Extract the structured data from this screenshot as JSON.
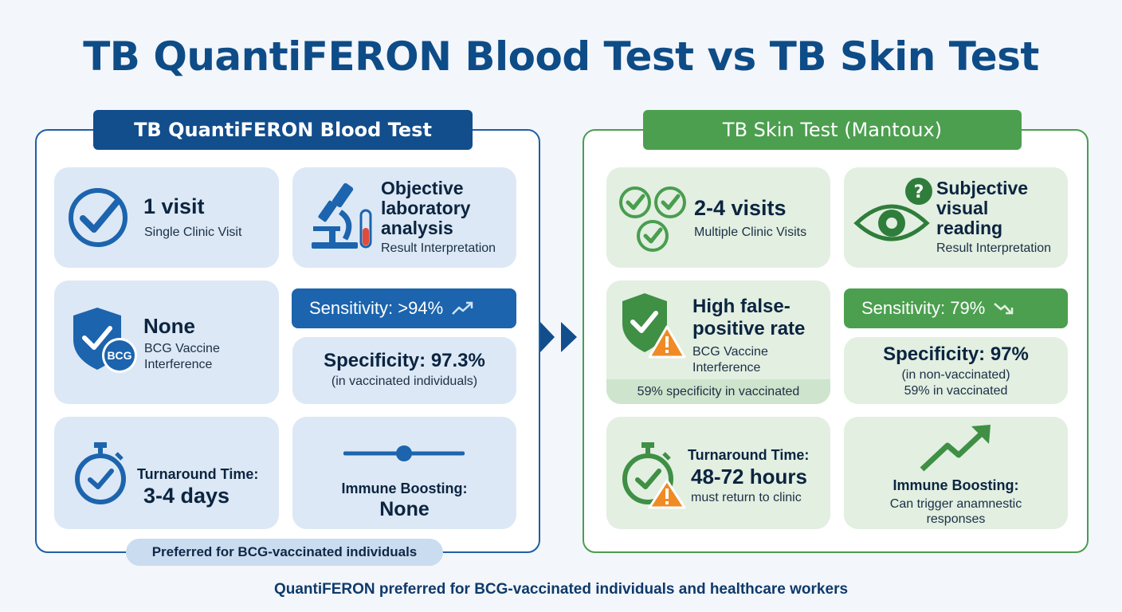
{
  "title": "TB QuantiFERON Blood Test vs TB Skin Test",
  "colors": {
    "blue": "#1d5fa5",
    "green": "#4a9d4f",
    "warning": "#f08a24"
  },
  "left": {
    "header": "TB QuantiFERON Blood Test",
    "visits": {
      "main": "1 visit",
      "sub": "Single Clinic Visit",
      "icon": "check-circle-icon"
    },
    "analysis": {
      "line1": "Objective",
      "line2": "laboratory",
      "line3": "analysis",
      "sub": "Result Interpretation",
      "icon": "microscope-icon"
    },
    "bcg": {
      "main": "None",
      "sub1": "BCG Vaccine",
      "sub2": "Interference",
      "badge": "BCG",
      "icon": "shield-check-icon"
    },
    "sensitivity": "Sensitivity: >94%",
    "specificity": {
      "main": "Specificity: 97.3%",
      "sub": "(in vaccinated individuals)"
    },
    "turnaround": {
      "label": "Turnaround Time:",
      "value": "3-4 days",
      "icon": "stopwatch-icon"
    },
    "boosting": {
      "label": "Immune Boosting:",
      "value": "None",
      "icon": "flat-line-icon"
    },
    "preferred": "Preferred for BCG-vaccinated individuals"
  },
  "right": {
    "header": "TB Skin Test (Mantoux)",
    "visits": {
      "main": "2-4 visits",
      "sub": "Multiple Clinic Visits",
      "icon": "multi-check-icon"
    },
    "reading": {
      "line1": "Subjective",
      "line2": "visual",
      "line3": "reading",
      "sub": "Result Interpretation",
      "icon": "eye-question-icon"
    },
    "bcg": {
      "line1": "High false-",
      "line2": "positive rate",
      "sub1": "BCG Vaccine",
      "sub2": "Interference",
      "note": "59% specificity in vaccinated",
      "icon": "shield-warning-icon"
    },
    "sensitivity": "Sensitivity: 79%",
    "specificity": {
      "main": "Specificity: 97%",
      "sub1": "(in non-vaccinated)",
      "sub2": "59% in vaccinated"
    },
    "turnaround": {
      "label": "Turnaround Time:",
      "value": "48-72 hours",
      "sub": "must return to clinic",
      "icon": "stopwatch-warning-icon"
    },
    "boosting": {
      "label": "Immune Boosting:",
      "sub1": "Can trigger anamnestic",
      "sub2": "responses",
      "icon": "trend-up-icon"
    }
  },
  "footer": "QuantiFERON preferred for BCG-vaccinated individuals and healthcare workers"
}
